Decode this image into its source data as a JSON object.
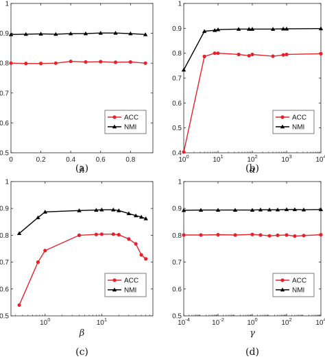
{
  "chart_data": [
    {
      "type": "line",
      "panel": "(a)",
      "xlabel": "λ",
      "ylabel": "",
      "xscale": "linear",
      "xlim": [
        0,
        0.95
      ],
      "ylim": [
        0.5,
        1.0
      ],
      "xticks": [
        0,
        0.2,
        0.4,
        0.6,
        0.8
      ],
      "xticklabels": [
        "0",
        "0.2",
        "0.4",
        "0.6",
        "0.8"
      ],
      "yticks": [
        0.5,
        0.6,
        0.7,
        0.8,
        0.9,
        1.0
      ],
      "yticklabels": [
        "0.5",
        "0.6",
        "0.7",
        "0.8",
        "0.9",
        "1"
      ],
      "legend_position": "lower-right",
      "x": [
        0,
        0.1,
        0.2,
        0.3,
        0.4,
        0.5,
        0.6,
        0.7,
        0.8,
        0.9
      ],
      "series": [
        {
          "name": "ACC",
          "color": "#e8202a",
          "marker": "circle",
          "values": [
            0.8,
            0.799,
            0.799,
            0.8,
            0.806,
            0.804,
            0.805,
            0.803,
            0.804,
            0.8
          ]
        },
        {
          "name": "NMI",
          "color": "#000000",
          "marker": "triangle",
          "values": [
            0.896,
            0.897,
            0.898,
            0.897,
            0.899,
            0.899,
            0.901,
            0.901,
            0.899,
            0.896
          ]
        }
      ]
    },
    {
      "type": "line",
      "panel": "(b)",
      "xlabel": "α",
      "ylabel": "",
      "xscale": "log",
      "xlim": [
        1,
        10000
      ],
      "ylim": [
        0.4,
        1.0
      ],
      "xticks": [
        1,
        10,
        100,
        1000,
        10000
      ],
      "xticklabels": [
        "10^0",
        "10^1",
        "10^2",
        "10^3",
        "10^4"
      ],
      "yticks": [
        0.4,
        0.5,
        0.6,
        0.7,
        0.8,
        0.9,
        1.0
      ],
      "yticklabels": [
        "0.4",
        "0.5",
        "0.6",
        "0.7",
        "0.8",
        "0.9",
        "1"
      ],
      "legend_position": "lower-right",
      "x": [
        1,
        4,
        8,
        10,
        40,
        80,
        100,
        400,
        800,
        1000,
        10000
      ],
      "series": [
        {
          "name": "ACC",
          "color": "#e8202a",
          "marker": "circle",
          "values": [
            0.403,
            0.787,
            0.8,
            0.8,
            0.795,
            0.79,
            0.795,
            0.788,
            0.793,
            0.795,
            0.798
          ]
        },
        {
          "name": "NMI",
          "color": "#000000",
          "marker": "triangle",
          "values": [
            0.733,
            0.888,
            0.892,
            0.895,
            0.897,
            0.897,
            0.897,
            0.897,
            0.898,
            0.898,
            0.899
          ]
        }
      ]
    },
    {
      "type": "line",
      "panel": "(c)",
      "xlabel": "β",
      "ylabel": "",
      "xscale": "log",
      "xlim": [
        0.25,
        80
      ],
      "ylim": [
        0.5,
        1.0
      ],
      "xticks": [
        1,
        10
      ],
      "xticklabels": [
        "10^0",
        "10^1"
      ],
      "yticks": [
        0.5,
        0.6,
        0.7,
        0.8,
        0.9,
        1.0
      ],
      "yticklabels": [
        "0.5",
        "0.6",
        "0.7",
        "0.8",
        "0.9",
        "1"
      ],
      "legend_position": "lower-right",
      "x": [
        0.35,
        0.75,
        1.0,
        4.0,
        8.0,
        10.0,
        16.0,
        20.0,
        30.0,
        40.0,
        50.0,
        60.0
      ],
      "series": [
        {
          "name": "ACC",
          "color": "#e8202a",
          "marker": "circle",
          "values": [
            0.54,
            0.7,
            0.743,
            0.8,
            0.803,
            0.804,
            0.804,
            0.802,
            0.786,
            0.768,
            0.727,
            0.712
          ]
        },
        {
          "name": "NMI",
          "color": "#000000",
          "marker": "triangle",
          "values": [
            0.807,
            0.866,
            0.887,
            0.892,
            0.894,
            0.895,
            0.895,
            0.892,
            0.881,
            0.873,
            0.868,
            0.862
          ]
        }
      ]
    },
    {
      "type": "line",
      "panel": "(d)",
      "xlabel": "γ",
      "ylabel": "",
      "xscale": "log",
      "xlim": [
        0.0001,
        10000
      ],
      "ylim": [
        0.5,
        1.0
      ],
      "xticks": [
        0.0001,
        0.01,
        1,
        100,
        10000
      ],
      "xticklabels": [
        "10^-4",
        "10^-2",
        "10^0",
        "10^2",
        "10^4"
      ],
      "yticks": [
        0.5,
        0.6,
        0.7,
        0.8,
        0.9,
        1.0
      ],
      "yticklabels": [
        "0.5",
        "0.6",
        "0.7",
        "0.8",
        "0.9",
        "1"
      ],
      "legend_position": "lower-right",
      "x": [
        0.0001,
        0.001,
        0.01,
        0.1,
        1,
        3,
        10,
        30,
        100,
        300,
        1000,
        10000
      ],
      "series": [
        {
          "name": "ACC",
          "color": "#e8202a",
          "marker": "circle",
          "values": [
            0.801,
            0.801,
            0.802,
            0.801,
            0.803,
            0.801,
            0.798,
            0.8,
            0.801,
            0.797,
            0.799,
            0.802
          ]
        },
        {
          "name": "NMI",
          "color": "#000000",
          "marker": "triangle",
          "values": [
            0.893,
            0.894,
            0.894,
            0.894,
            0.894,
            0.895,
            0.895,
            0.895,
            0.896,
            0.896,
            0.895,
            0.896
          ]
        }
      ]
    }
  ]
}
